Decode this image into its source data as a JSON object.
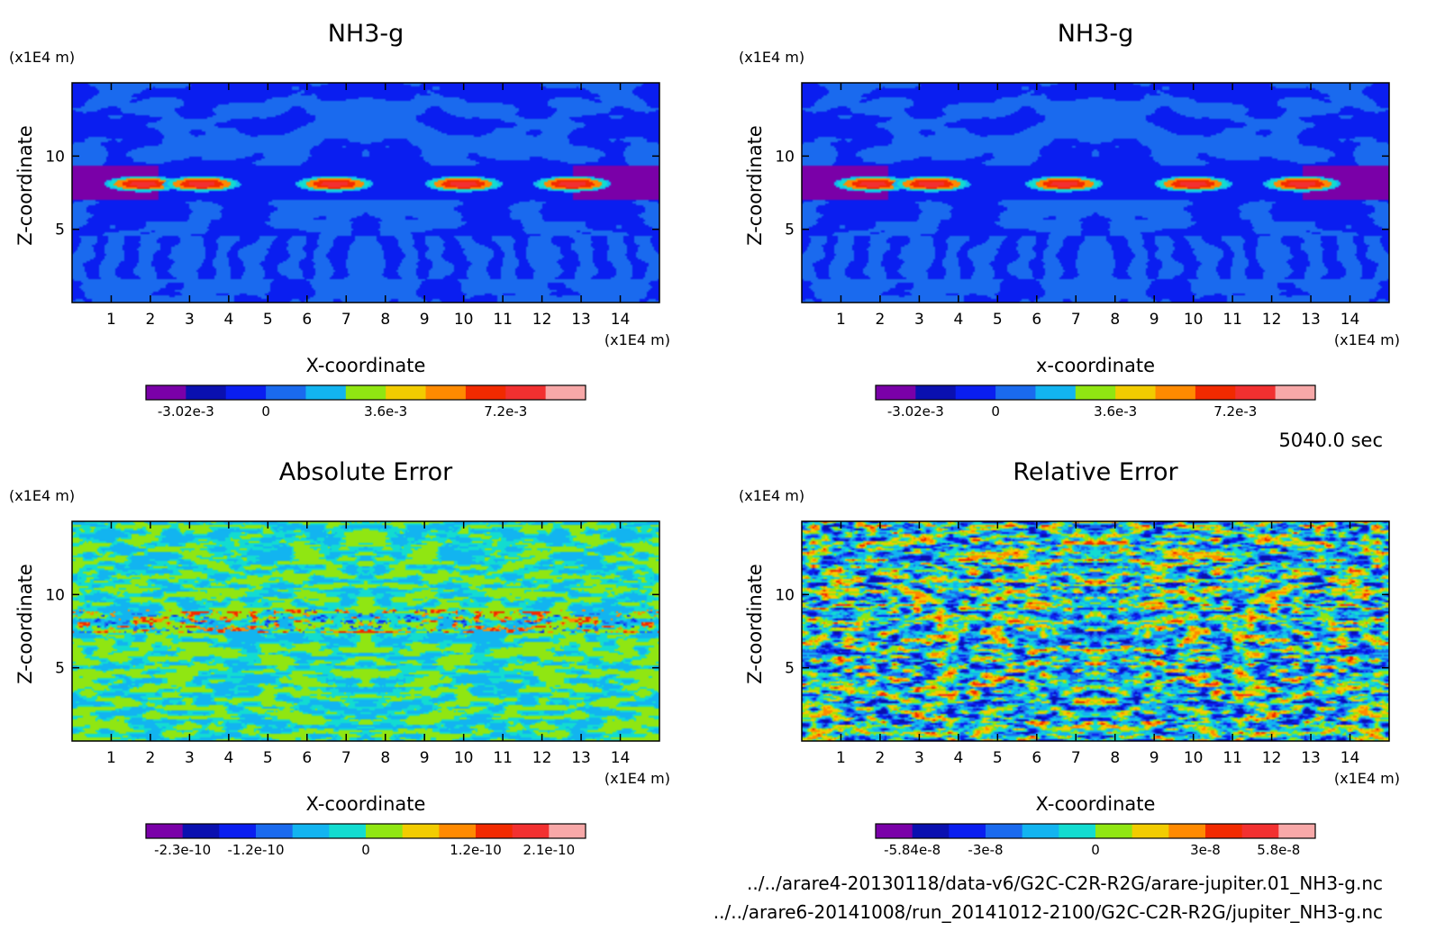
{
  "time_label": "5040.0 sec",
  "source_files": [
    "../../arare4-20130118/data-v6/G2C-C2R-R2G/arare-jupiter.01_NH3-g.nc",
    "../../arare6-20141008/run_20141012-2100/G2C-C2R-R2G/jupiter_NH3-g.nc"
  ],
  "colors": {
    "colormap": [
      "#7a00a8",
      "#0a10b0",
      "#0a1ef0",
      "#1a6aee",
      "#12b4f0",
      "#12dcd0",
      "#90e612",
      "#f2cc00",
      "#ff8a00",
      "#f22a00",
      "#f23030",
      "#f7a8a8"
    ]
  },
  "chart_data": [
    {
      "type": "heatmap",
      "title": "NH3-g",
      "xlabel": "X-coordinate",
      "ylabel": "Z-coordinate",
      "x_unit": "(x1E4 m)",
      "y_unit": "(x1E4 m)",
      "xlim": [
        0,
        15
      ],
      "ylim": [
        0,
        15
      ],
      "x_ticks": [
        "1",
        "2",
        "3",
        "4",
        "5",
        "6",
        "7",
        "8",
        "9",
        "10",
        "11",
        "12",
        "13",
        "14"
      ],
      "y_ticks": [
        "5",
        "10"
      ],
      "field": "nh3",
      "colorbar": {
        "levels": 11,
        "labels": [
          "-3.02e-3",
          "0",
          "3.6e-3",
          "7.2e-3"
        ]
      }
    },
    {
      "type": "heatmap",
      "title": "NH3-g",
      "xlabel": "x-coordinate",
      "ylabel": "Z-coordinate",
      "x_unit": "(x1E4 m)",
      "y_unit": "(x1E4 m)",
      "xlim": [
        0,
        15
      ],
      "ylim": [
        0,
        15
      ],
      "x_ticks": [
        "1",
        "2",
        "3",
        "4",
        "5",
        "6",
        "7",
        "8",
        "9",
        "10",
        "11",
        "12",
        "13",
        "14"
      ],
      "y_ticks": [
        "5",
        "10"
      ],
      "field": "nh3",
      "colorbar": {
        "levels": 11,
        "labels": [
          "-3.02e-3",
          "0",
          "3.6e-3",
          "7.2e-3"
        ]
      }
    },
    {
      "type": "heatmap",
      "title": "Absolute Error",
      "xlabel": "X-coordinate",
      "ylabel": "Z-coordinate",
      "x_unit": "(x1E4 m)",
      "y_unit": "(x1E4 m)",
      "xlim": [
        0,
        15
      ],
      "ylim": [
        0,
        15
      ],
      "x_ticks": [
        "1",
        "2",
        "3",
        "4",
        "5",
        "6",
        "7",
        "8",
        "9",
        "10",
        "11",
        "12",
        "13",
        "14"
      ],
      "y_ticks": [
        "5",
        "10"
      ],
      "field": "abs_err",
      "colorbar": {
        "levels": 12,
        "labels": [
          "-2.3e-10",
          "-1.2e-10",
          "0",
          "1.2e-10",
          "2.1e-10"
        ]
      }
    },
    {
      "type": "heatmap",
      "title": "Relative Error",
      "xlabel": "X-coordinate",
      "ylabel": "Z-coordinate",
      "x_unit": "(x1E4 m)",
      "y_unit": "(x1E4 m)",
      "xlim": [
        0,
        15
      ],
      "ylim": [
        0,
        15
      ],
      "x_ticks": [
        "1",
        "2",
        "3",
        "4",
        "5",
        "6",
        "7",
        "8",
        "9",
        "10",
        "11",
        "12",
        "13",
        "14"
      ],
      "y_ticks": [
        "5",
        "10"
      ],
      "field": "rel_err",
      "colorbar": {
        "levels": 12,
        "labels": [
          "-5.84e-8",
          "-3e-8",
          "0",
          "3e-8",
          "5.8e-8"
        ]
      }
    }
  ]
}
